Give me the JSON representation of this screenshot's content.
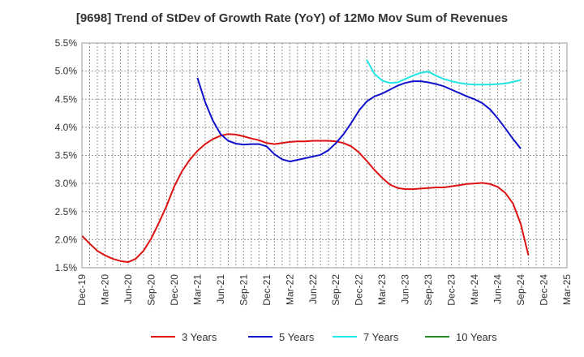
{
  "chart_data": {
    "type": "line",
    "title": "[9698]  Trend of StDev of Growth Rate (YoY) of 12Mo Mov Sum of Revenues",
    "xlabel": "",
    "ylabel": "",
    "ylim": [
      1.5,
      5.5
    ],
    "y_ticks": [
      "1.5%",
      "2.0%",
      "2.5%",
      "3.0%",
      "3.5%",
      "4.0%",
      "4.5%",
      "5.0%",
      "5.5%"
    ],
    "x_ticks": [
      "Dec-19",
      "Mar-20",
      "Jun-20",
      "Sep-20",
      "Dec-20",
      "Mar-21",
      "Jun-21",
      "Sep-21",
      "Dec-21",
      "Mar-22",
      "Jun-22",
      "Sep-22",
      "Dec-22",
      "Mar-23",
      "Jun-23",
      "Sep-23",
      "Dec-23",
      "Mar-24",
      "Jun-24",
      "Sep-24",
      "Dec-24",
      "Mar-25"
    ],
    "x_range_months": [
      0,
      63
    ],
    "grid": true,
    "legend_position": "bottom",
    "series": [
      {
        "name": "3 Years",
        "color": "#dd1111",
        "points": [
          [
            0,
            2.07
          ],
          [
            1,
            1.93
          ],
          [
            2,
            1.8
          ],
          [
            3,
            1.72
          ],
          [
            4,
            1.66
          ],
          [
            5,
            1.62
          ],
          [
            6,
            1.6
          ],
          [
            7,
            1.66
          ],
          [
            8,
            1.8
          ],
          [
            9,
            2.02
          ],
          [
            10,
            2.3
          ],
          [
            11,
            2.6
          ],
          [
            12,
            2.95
          ],
          [
            13,
            3.22
          ],
          [
            14,
            3.42
          ],
          [
            15,
            3.58
          ],
          [
            16,
            3.7
          ],
          [
            17,
            3.79
          ],
          [
            18,
            3.85
          ],
          [
            19,
            3.88
          ],
          [
            20,
            3.87
          ],
          [
            21,
            3.84
          ],
          [
            22,
            3.8
          ],
          [
            23,
            3.77
          ],
          [
            24,
            3.72
          ],
          [
            25,
            3.7
          ],
          [
            26,
            3.72
          ],
          [
            27,
            3.74
          ],
          [
            28,
            3.75
          ],
          [
            29,
            3.75
          ],
          [
            30,
            3.76
          ],
          [
            31,
            3.76
          ],
          [
            32,
            3.76
          ],
          [
            33,
            3.75
          ],
          [
            34,
            3.72
          ],
          [
            35,
            3.66
          ],
          [
            36,
            3.55
          ],
          [
            37,
            3.4
          ],
          [
            38,
            3.24
          ],
          [
            39,
            3.1
          ],
          [
            40,
            2.98
          ],
          [
            41,
            2.92
          ],
          [
            42,
            2.9
          ],
          [
            43,
            2.9
          ],
          [
            44,
            2.91
          ],
          [
            45,
            2.92
          ],
          [
            46,
            2.93
          ],
          [
            47,
            2.93
          ],
          [
            48,
            2.95
          ],
          [
            49,
            2.97
          ],
          [
            50,
            2.99
          ],
          [
            51,
            3.0
          ],
          [
            52,
            3.01
          ],
          [
            53,
            2.99
          ],
          [
            54,
            2.94
          ],
          [
            55,
            2.83
          ],
          [
            56,
            2.64
          ],
          [
            57,
            2.28
          ],
          [
            58,
            1.72
          ]
        ]
      },
      {
        "name": "5 Years",
        "color": "#1111cc",
        "points": [
          [
            15,
            4.88
          ],
          [
            16,
            4.45
          ],
          [
            17,
            4.12
          ],
          [
            18,
            3.88
          ],
          [
            19,
            3.76
          ],
          [
            20,
            3.71
          ],
          [
            21,
            3.69
          ],
          [
            22,
            3.7
          ],
          [
            23,
            3.7
          ],
          [
            24,
            3.66
          ],
          [
            25,
            3.52
          ],
          [
            26,
            3.43
          ],
          [
            27,
            3.39
          ],
          [
            28,
            3.42
          ],
          [
            29,
            3.45
          ],
          [
            30,
            3.48
          ],
          [
            31,
            3.51
          ],
          [
            32,
            3.59
          ],
          [
            33,
            3.72
          ],
          [
            34,
            3.88
          ],
          [
            35,
            4.08
          ],
          [
            36,
            4.3
          ],
          [
            37,
            4.46
          ],
          [
            38,
            4.55
          ],
          [
            39,
            4.6
          ],
          [
            40,
            4.67
          ],
          [
            41,
            4.74
          ],
          [
            42,
            4.79
          ],
          [
            43,
            4.82
          ],
          [
            44,
            4.82
          ],
          [
            45,
            4.8
          ],
          [
            46,
            4.77
          ],
          [
            47,
            4.73
          ],
          [
            48,
            4.67
          ],
          [
            49,
            4.61
          ],
          [
            50,
            4.55
          ],
          [
            51,
            4.5
          ],
          [
            52,
            4.43
          ],
          [
            53,
            4.32
          ],
          [
            54,
            4.16
          ],
          [
            55,
            3.98
          ],
          [
            56,
            3.79
          ],
          [
            57,
            3.62
          ]
        ]
      },
      {
        "name": "7 Years",
        "color": "#22e5e5",
        "points": [
          [
            37,
            5.2
          ],
          [
            38,
            4.95
          ],
          [
            39,
            4.83
          ],
          [
            40,
            4.79
          ],
          [
            41,
            4.8
          ],
          [
            42,
            4.86
          ],
          [
            43,
            4.92
          ],
          [
            44,
            4.97
          ],
          [
            45,
            4.99
          ],
          [
            46,
            4.92
          ],
          [
            47,
            4.86
          ],
          [
            48,
            4.82
          ],
          [
            49,
            4.79
          ],
          [
            50,
            4.77
          ],
          [
            51,
            4.76
          ],
          [
            52,
            4.76
          ],
          [
            53,
            4.76
          ],
          [
            54,
            4.77
          ],
          [
            55,
            4.78
          ],
          [
            56,
            4.81
          ],
          [
            57,
            4.84
          ]
        ]
      },
      {
        "name": "10 Years",
        "color": "#228b22",
        "points": []
      }
    ]
  }
}
